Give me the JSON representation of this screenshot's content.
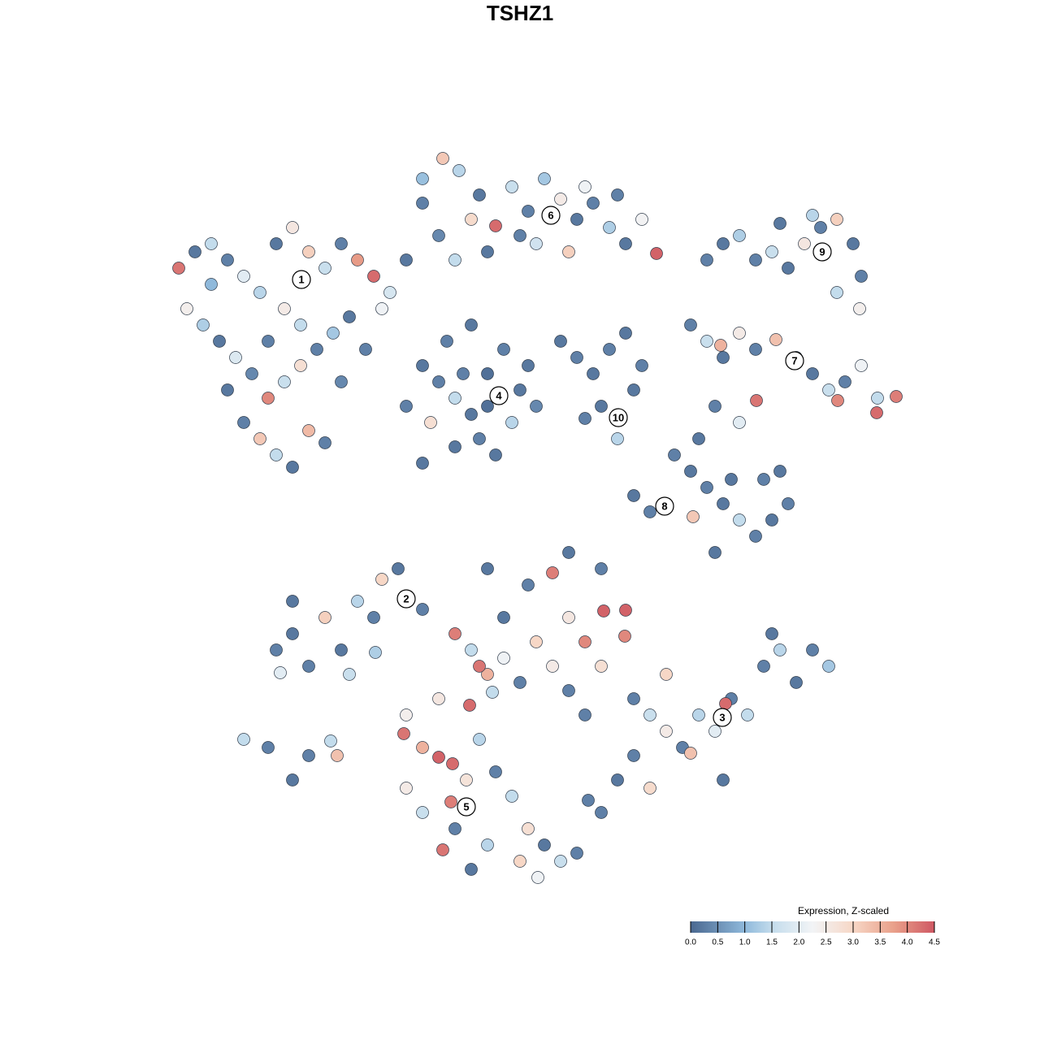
{
  "chart_data": {
    "type": "scatter",
    "title": "TSHZ1",
    "x": [
      22,
      24,
      26,
      28,
      30,
      32,
      34,
      36,
      38,
      40,
      42,
      44,
      46,
      48,
      50,
      23,
      25,
      27,
      29,
      31,
      33,
      35,
      37,
      39,
      41,
      43,
      30,
      32,
      34,
      36,
      38,
      40,
      35,
      37,
      33,
      28,
      45,
      47,
      42,
      26,
      52,
      54.5,
      56.5,
      59,
      61,
      63,
      65,
      67,
      69,
      71,
      73,
      75,
      77,
      80.8,
      79,
      54,
      56,
      60,
      64,
      70,
      72,
      76,
      52,
      58,
      66,
      52,
      54,
      56,
      58,
      60,
      62,
      64,
      66,
      53,
      56,
      59,
      61,
      63,
      55,
      58,
      50,
      52,
      65,
      60,
      57,
      69,
      71,
      73,
      75,
      77,
      79,
      74,
      76,
      78,
      72,
      87,
      89,
      91,
      93,
      95,
      97,
      99,
      101,
      103,
      105,
      106,
      105.8,
      103,
      96,
      100,
      85,
      87,
      89,
      91,
      93,
      95.5,
      98,
      100,
      102,
      104,
      106,
      108,
      110.3,
      107.9,
      103.1,
      93.1,
      91,
      88,
      86,
      88.7,
      83,
      85,
      87,
      89,
      91,
      93,
      95,
      97,
      90,
      94,
      88,
      85.3,
      80,
      78,
      96,
      34,
      36,
      38,
      40,
      42,
      44,
      46,
      47,
      49,
      52,
      36,
      34.5,
      30,
      33,
      36,
      38,
      41.5,
      40.7,
      43,
      46.2,
      78,
      80,
      82,
      84,
      86,
      88,
      90,
      92,
      94,
      96,
      98,
      100,
      102,
      89.3,
      85,
      80,
      82,
      78,
      95,
      89,
      56,
      58,
      60,
      62,
      64,
      66,
      68,
      70,
      72,
      74.3,
      77,
      76.9,
      74,
      70,
      68,
      62,
      65,
      70,
      74,
      60,
      50,
      49.7,
      52,
      54,
      55.7,
      57.4,
      59,
      61,
      63,
      65,
      67,
      69,
      71,
      60,
      58,
      54.5,
      52,
      50,
      56,
      64,
      72,
      76,
      74,
      57.8,
      60.6,
      55.5,
      66.2,
      72.4,
      59,
      54
    ],
    "y": [
      95,
      97,
      98,
      96,
      94,
      92,
      98,
      100,
      97,
      95,
      98,
      96,
      94,
      92,
      96,
      90,
      88,
      86,
      84,
      82,
      79,
      81,
      83,
      85,
      87,
      89,
      76,
      74,
      72,
      70.5,
      75,
      73.5,
      90,
      88,
      86,
      80,
      85,
      90,
      81,
      93,
      103,
      108.5,
      107,
      104,
      100.2,
      105,
      102,
      106,
      103.5,
      101,
      103,
      100,
      98,
      96.8,
      101,
      99,
      96,
      97,
      99,
      97,
      105,
      104,
      106,
      101,
      98,
      83,
      81,
      79,
      77,
      82,
      85,
      80,
      78,
      76,
      73,
      74,
      72,
      76,
      86,
      88,
      78,
      71,
      83,
      78,
      82,
      86,
      84,
      82,
      85,
      87,
      83,
      78,
      74,
      80,
      76.5,
      96,
      98,
      99,
      96,
      97,
      95,
      98,
      100,
      101,
      98,
      94,
      90,
      92,
      100.5,
      101.5,
      88,
      86,
      84,
      87,
      85,
      86.2,
      84,
      82,
      80,
      81,
      83,
      79,
      79.2,
      77.2,
      78.7,
      78.7,
      76,
      78,
      74,
      85.5,
      72,
      70,
      68,
      66,
      64,
      62,
      64,
      66,
      69,
      69,
      60,
      64.4,
      65,
      67,
      70,
      48,
      50,
      46,
      52,
      48,
      54,
      52,
      56.7,
      58,
      53,
      54,
      45.2,
      37,
      36,
      32,
      35,
      35,
      36.8,
      45,
      47.7,
      42,
      40,
      38,
      36,
      40,
      38,
      42,
      40,
      46,
      48,
      44,
      48,
      46,
      41.4,
      35.3,
      31,
      45,
      35,
      50,
      32,
      50,
      48,
      45,
      47,
      44,
      49,
      57.5,
      52,
      49,
      52.8,
      52.9,
      49.7,
      46,
      43,
      46,
      52,
      56,
      60,
      58,
      58,
      40,
      37.7,
      36,
      34.8,
      34,
      32,
      37,
      33,
      30,
      26,
      24,
      22,
      23,
      24,
      21,
      23.4,
      28,
      31,
      26,
      22,
      40,
      32,
      28,
      41.2,
      42.8,
      29.3,
      20,
      29.5,
      46,
      42
    ],
    "values": [
      4.2,
      0.2,
      1.5,
      0.3,
      2.0,
      1.4,
      0.2,
      2.6,
      3.1,
      1.6,
      0.3,
      3.8,
      4.3,
      1.8,
      0.2,
      2.4,
      1.3,
      0.2,
      1.9,
      0.4,
      4.0,
      1.6,
      2.8,
      0.3,
      1.2,
      0.2,
      0.3,
      3.2,
      1.5,
      0.2,
      3.4,
      0.3,
      2.5,
      1.5,
      0.3,
      0.2,
      0.3,
      2.2,
      0.4,
      1.0,
      0.3,
      3.2,
      1.4,
      0.2,
      4.3,
      1.6,
      0.3,
      1.2,
      2.5,
      0.2,
      0.3,
      1.3,
      0.2,
      4.4,
      2.3,
      0.4,
      1.5,
      0.2,
      0.3,
      3.1,
      2.2,
      0.3,
      1.1,
      2.9,
      1.7,
      0.2,
      0.3,
      1.5,
      0.2,
      0.1,
      0.3,
      0.2,
      0.4,
      2.8,
      0.2,
      0.3,
      0.2,
      1.4,
      0.3,
      0.2,
      0.3,
      0.2,
      0.2,
      0.1,
      0.3,
      0.2,
      0.3,
      0.2,
      0.3,
      0.2,
      0.3,
      0.2,
      1.4,
      0.2,
      0.3,
      0.3,
      0.2,
      1.3,
      0.3,
      1.6,
      0.2,
      2.6,
      0.3,
      3.1,
      0.2,
      0.3,
      2.4,
      1.5,
      0.2,
      1.4,
      0.3,
      1.6,
      0.2,
      2.5,
      0.3,
      3.3,
      1.4,
      0.2,
      1.6,
      0.3,
      2.2,
      1.5,
      4.1,
      4.3,
      4.0,
      4.2,
      2.0,
      0.3,
      0.2,
      3.5,
      0.3,
      0.2,
      0.3,
      0.2,
      1.5,
      0.3,
      0.2,
      0.3,
      0.2,
      0.3,
      0.2,
      3.2,
      0.3,
      0.2,
      0.2,
      0.3,
      0.2,
      0.3,
      3.1,
      0.2,
      1.4,
      0.3,
      3.0,
      0.2,
      0.3,
      0.2,
      2.0,
      1.5,
      0.3,
      0.2,
      0.3,
      3.3,
      1.5,
      1.6,
      1.3,
      0.3,
      1.6,
      2.5,
      0.3,
      1.4,
      2.0,
      0.3,
      1.5,
      0.3,
      1.4,
      0.2,
      0.3,
      1.2,
      4.3,
      3.3,
      2.9,
      3.0,
      0.3,
      0.2,
      0.2,
      4.1,
      1.5,
      3.5,
      2.2,
      0.3,
      3.0,
      4.1,
      2.6,
      4.0,
      4.4,
      4.4,
      4.0,
      2.8,
      0.3,
      2.5,
      0.2,
      0.3,
      0.2,
      0.3,
      0.2,
      2.4,
      4.2,
      3.5,
      4.4,
      4.3,
      2.7,
      1.4,
      0.3,
      1.5,
      2.8,
      0.2,
      1.6,
      0.3,
      1.4,
      0.2,
      4.2,
      1.6,
      2.5,
      0.3,
      3.0,
      0.3,
      0.2,
      0.3,
      4.3,
      1.5,
      4.1,
      2.2,
      0.3,
      4.2,
      2.6
    ],
    "xlim": [
      0,
      128
    ],
    "ylim": [
      0,
      128
    ],
    "labels": [
      {
        "text": "1",
        "x": 37.1,
        "y": 93.6
      },
      {
        "text": "2",
        "x": 50,
        "y": 54.3
      },
      {
        "text": "3",
        "x": 88.9,
        "y": 39.7
      },
      {
        "text": "4",
        "x": 61.4,
        "y": 79.3
      },
      {
        "text": "5",
        "x": 57.4,
        "y": 28.7
      },
      {
        "text": "6",
        "x": 67.8,
        "y": 101.5
      },
      {
        "text": "7",
        "x": 97.8,
        "y": 83.6
      },
      {
        "text": "8",
        "x": 81.8,
        "y": 65.7
      },
      {
        "text": "9",
        "x": 101.2,
        "y": 97
      },
      {
        "text": "10",
        "x": 76.1,
        "y": 76.6
      }
    ],
    "colorbar": {
      "title": "Expression, Z-scaled",
      "clim": [
        0,
        4.5
      ],
      "ticks": [
        {
          "value": 0,
          "label": "0.0"
        },
        0.5,
        {
          "value": 1,
          "label": "1.0"
        },
        1.5,
        {
          "value": 2,
          "label": "2.0"
        },
        2.5,
        {
          "value": 3,
          "label": "3.0"
        },
        3.5,
        {
          "value": 4,
          "label": "4.0"
        },
        4.5
      ],
      "colorscale": [
        [
          0,
          "#4a6890"
        ],
        [
          1,
          "#8fb9db"
        ],
        [
          1.5,
          "#c3dcec"
        ],
        [
          2.25,
          "#f2f4f6"
        ],
        [
          3,
          "#f7d7c6"
        ],
        [
          3.75,
          "#e9a08a"
        ],
        [
          4.5,
          "#cf5863"
        ]
      ]
    }
  }
}
